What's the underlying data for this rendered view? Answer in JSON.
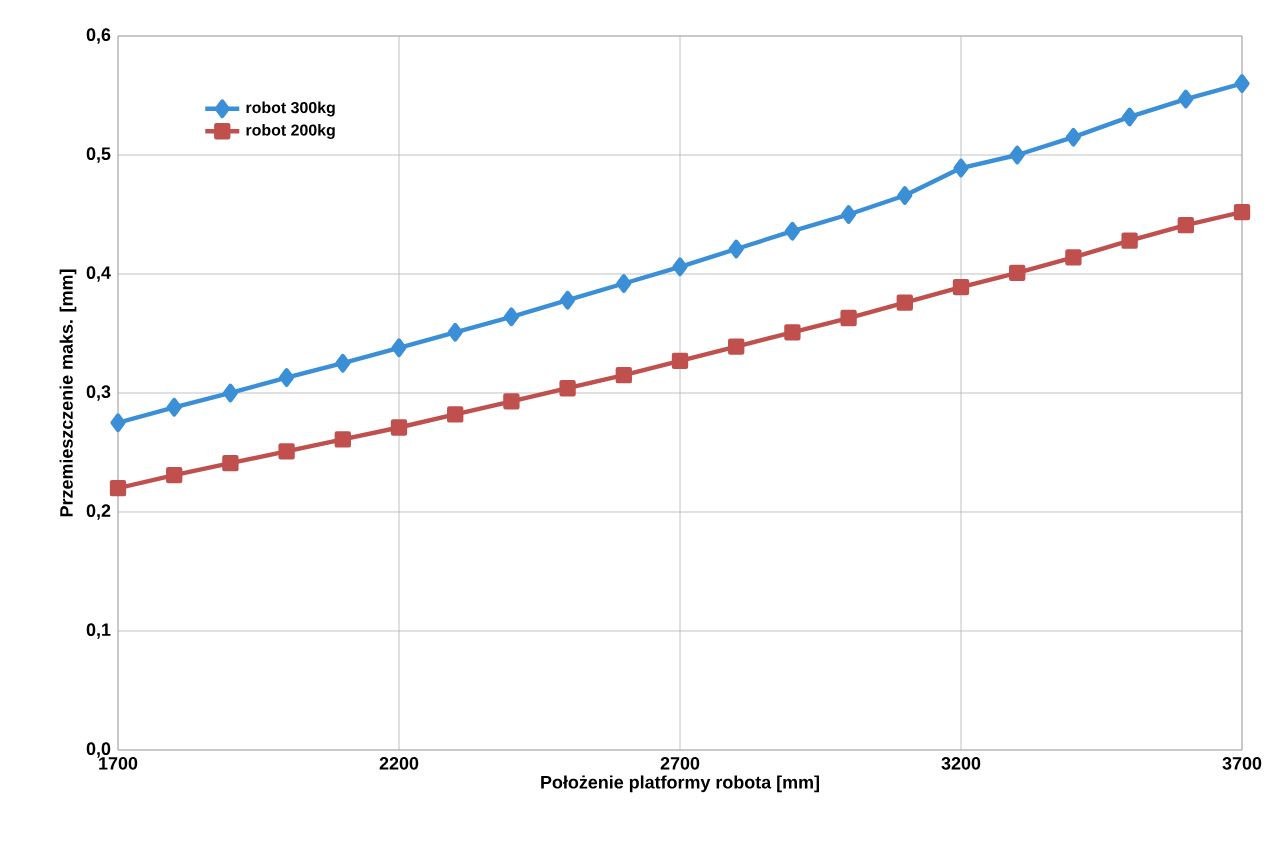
{
  "chart_data": {
    "type": "line",
    "xlabel": "Położenie platformy robota [mm]",
    "ylabel": "Przemieszczenie maks. [mm]",
    "x": [
      1700,
      1800,
      1900,
      2000,
      2100,
      2200,
      2300,
      2400,
      2500,
      2600,
      2700,
      2800,
      2900,
      3000,
      3100,
      3200,
      3300,
      3400,
      3500,
      3600,
      3700
    ],
    "series": [
      {
        "name": "robot 300kg",
        "color": "#3b8fd6",
        "marker": "diamond",
        "values": [
          0.275,
          0.288,
          0.3,
          0.313,
          0.325,
          0.338,
          0.351,
          0.364,
          0.378,
          0.392,
          0.406,
          0.421,
          0.436,
          0.45,
          0.466,
          0.489,
          0.5,
          0.515,
          0.532,
          0.547,
          0.56
        ]
      },
      {
        "name": "robot 200kg",
        "color": "#c0504d",
        "marker": "square",
        "values": [
          0.22,
          0.231,
          0.241,
          0.251,
          0.261,
          0.271,
          0.282,
          0.293,
          0.304,
          0.315,
          0.327,
          0.339,
          0.351,
          0.363,
          0.376,
          0.389,
          0.401,
          0.414,
          0.428,
          0.441,
          0.452
        ]
      }
    ],
    "xlim": [
      1700,
      3700
    ],
    "xticks": [
      1700,
      2200,
      2700,
      3200,
      3700
    ],
    "ylim": [
      0,
      0.6
    ],
    "yticks": [
      {
        "value": 0,
        "label": "0,0"
      },
      {
        "value": 0.1,
        "label": "0,1"
      },
      {
        "value": 0.2,
        "label": "0,2"
      },
      {
        "value": 0.3,
        "label": "0,3"
      },
      {
        "value": 0.4,
        "label": "0,4"
      },
      {
        "value": 0.5,
        "label": "0,5"
      },
      {
        "value": 0.6,
        "label": "0,6"
      }
    ],
    "grid": true,
    "legend": "top left",
    "line_style": "solid"
  }
}
